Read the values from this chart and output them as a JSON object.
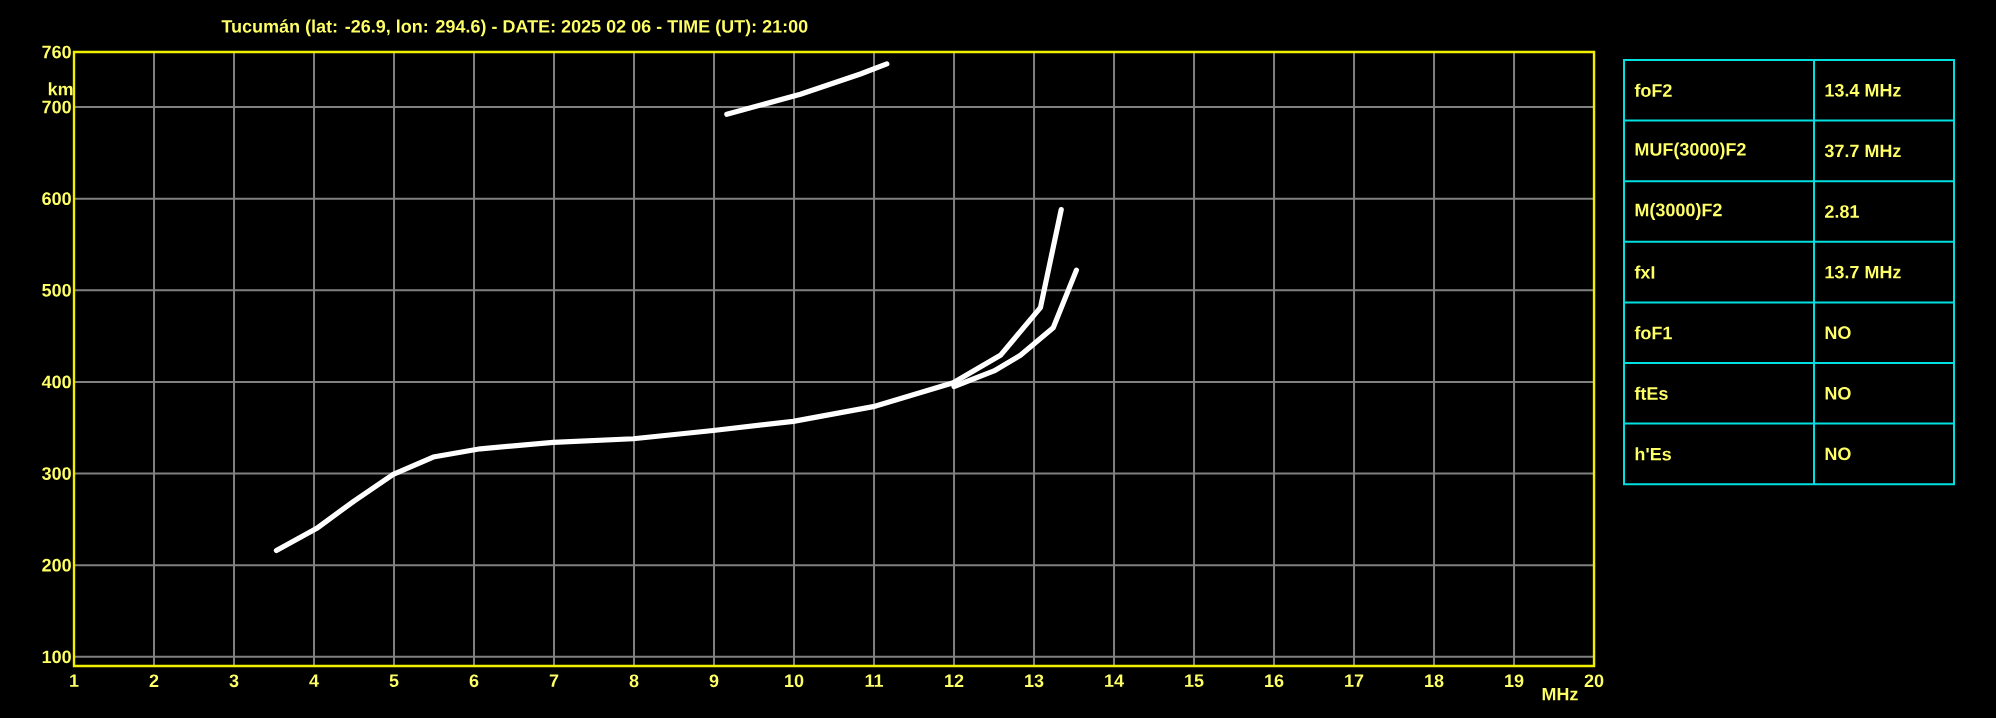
{
  "chart_data": [
    {
      "type": "line",
      "title": "Tucumán (lat: -26.9, lon: 294.6) - DATE: 2025 02 06 - TIME (UT): 21:00",
      "xlabel": "MHz",
      "ylabel": "km",
      "xlim": [
        1,
        20
      ],
      "ylim": [
        90,
        760
      ],
      "xticks": [
        1,
        2,
        3,
        4,
        5,
        6,
        7,
        8,
        9,
        10,
        11,
        12,
        13,
        14,
        15,
        16,
        17,
        18,
        19,
        20
      ],
      "yticks": [
        100,
        200,
        300,
        400,
        500,
        600,
        700,
        760
      ],
      "grid": true,
      "series": [
        {
          "color": "#ffffff",
          "x": [
            3.53,
            4.03,
            4.5,
            4.99,
            5.49,
            6.08,
            6.99,
            7.99,
            8.99,
            9.99,
            10.99,
            11.99,
            12.58,
            13.08,
            13.34
          ],
          "values": [
            216,
            240,
            270,
            299,
            318,
            327,
            334,
            338,
            347,
            357,
            373,
            399,
            429,
            481,
            588
          ]
        },
        {
          "color": "#ffffff",
          "x": [
            12.0,
            12.5,
            12.83,
            13.24,
            13.53
          ],
          "values": [
            395,
            412,
            429,
            459,
            522
          ]
        },
        {
          "color": "#ffffff",
          "x": [
            9.16,
            10.08,
            10.83,
            11.16
          ],
          "values": [
            692,
            714,
            736,
            747
          ]
        }
      ]
    },
    {
      "type": "other",
      "annotations": [
        "foF2",
        "13.4 MHz",
        "MUF(3000)F2",
        "37.7 MHz",
        "M(3000)F2",
        "2.81",
        "fxI",
        "13.7 MHz",
        "foF1",
        "NO",
        "ftEs",
        "NO",
        "h'Es",
        "NO"
      ]
    }
  ]
}
